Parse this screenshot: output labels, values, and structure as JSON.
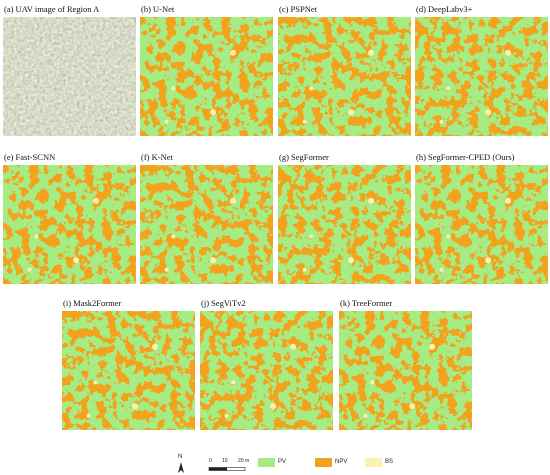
{
  "panels": [
    {
      "caption": "(a) UAV image of Region A"
    },
    {
      "caption": "(b) U-Net"
    },
    {
      "caption": "(c) PSPNet"
    },
    {
      "caption": "(d) DeepLabv3+"
    },
    {
      "caption": "(e) Fast-SCNN"
    },
    {
      "caption": "(f) K-Net"
    },
    {
      "caption": "(g) SegFormer"
    },
    {
      "caption": "(h) SegFormer-CPED (Ours)"
    },
    {
      "caption": "(i) Mask2Former"
    },
    {
      "caption": "(j) SegViTv2"
    },
    {
      "caption": "(k) TreeFormer"
    }
  ],
  "legend": {
    "north": "N",
    "scale": [
      "0",
      "10",
      "20 m"
    ],
    "items": [
      {
        "label": "PV",
        "color": "#a6ec84"
      },
      {
        "label": "NPV",
        "color": "#f2a21e"
      },
      {
        "label": "BS",
        "color": "#fdf1b0"
      }
    ]
  }
}
